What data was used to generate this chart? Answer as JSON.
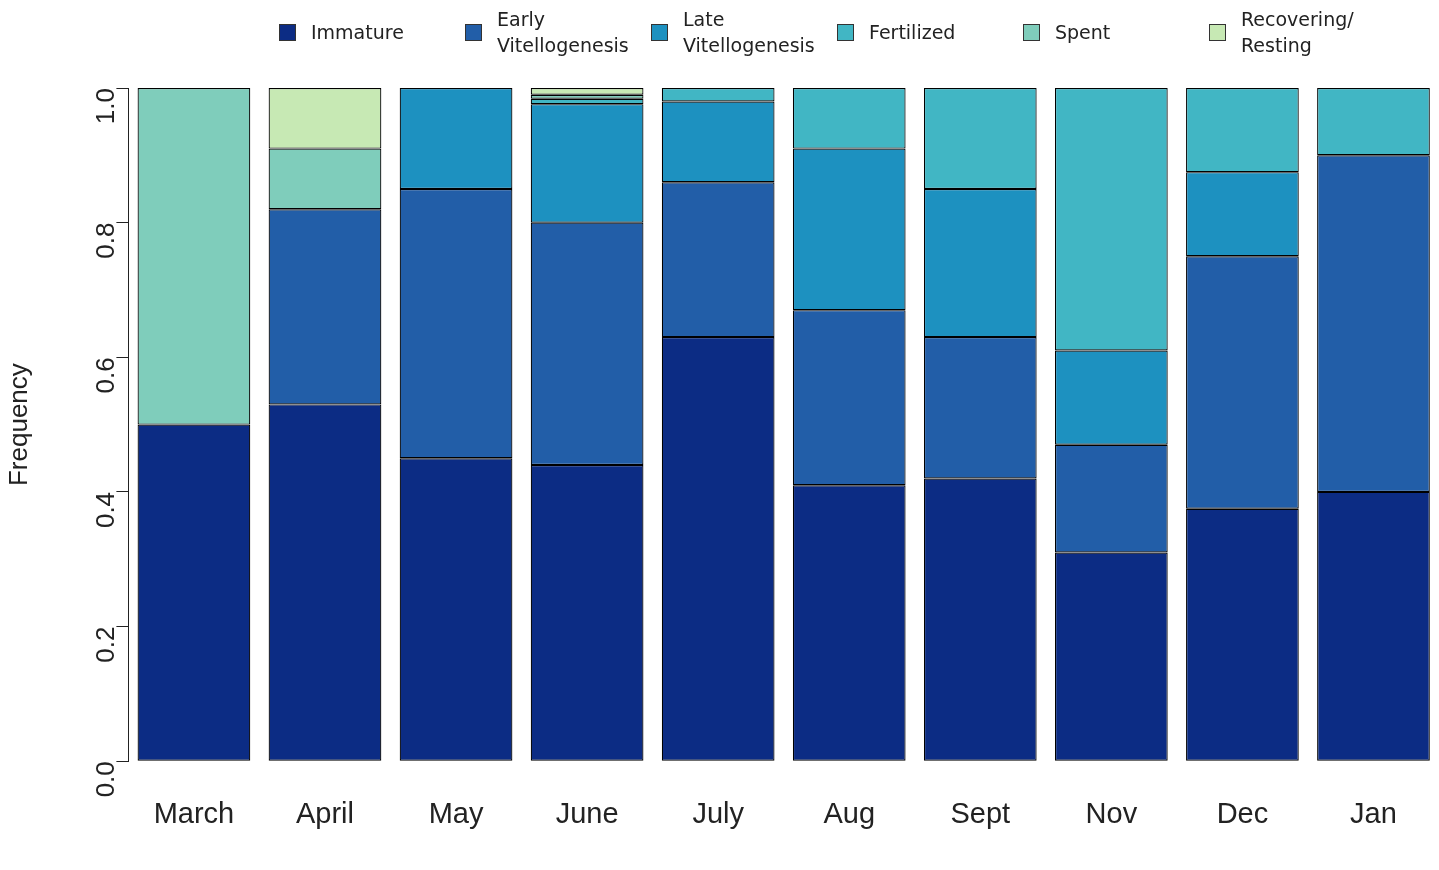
{
  "chart_data": {
    "type": "bar",
    "stacked": true,
    "ylabel": "Frequency",
    "categories": [
      "March",
      "April",
      "May",
      "June",
      "July",
      "Aug",
      "Sept",
      "Nov",
      "Dec",
      "Jan"
    ],
    "series": [
      {
        "name": "Immature",
        "color": "#0c2c84",
        "values": [
          0.5,
          0.53,
          0.45,
          0.44,
          0.63,
          0.41,
          0.42,
          0.31,
          0.375,
          0.4
        ]
      },
      {
        "name": "Early Vitellogenesis",
        "color": "#225ea8",
        "values": [
          0,
          0.29,
          0.4,
          0.36,
          0.23,
          0.26,
          0.21,
          0.16,
          0.375,
          0.5
        ]
      },
      {
        "name": "Late Vitellogenesis",
        "color": "#1d91c0",
        "values": [
          0,
          0,
          0.15,
          0.176,
          0.12,
          0.24,
          0.22,
          0.14,
          0.125,
          0
        ]
      },
      {
        "name": "Fertilized",
        "color": "#41b6c4",
        "values": [
          0,
          0,
          0,
          0.008,
          0.02,
          0.09,
          0.15,
          0.39,
          0.125,
          0.1
        ]
      },
      {
        "name": "Spent",
        "color": "#7fcdbb",
        "values": [
          0.5,
          0.09,
          0,
          0.006,
          0,
          0,
          0,
          0,
          0,
          0
        ]
      },
      {
        "name": "Recovering/ Resting",
        "color": "#c7e9b4",
        "values": [
          0,
          0.09,
          0,
          0.01,
          0,
          0,
          0,
          0,
          0,
          0
        ]
      }
    ],
    "ylim": [
      0,
      1
    ],
    "yticks": [
      {
        "value": 0,
        "label": "0.0"
      },
      {
        "value": 0.2,
        "label": "0.2"
      },
      {
        "value": 0.4,
        "label": "0.4"
      },
      {
        "value": 0.6,
        "label": "0.6"
      },
      {
        "value": 0.8,
        "label": "0.8"
      },
      {
        "value": 1,
        "label": "1.0"
      }
    ],
    "grid": false,
    "legend": "top"
  }
}
